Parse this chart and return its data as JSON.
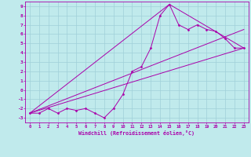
{
  "title": "",
  "xlabel": "Windchill (Refroidissement éolien,°C)",
  "background_color": "#c0eaec",
  "grid_color": "#a0d0d8",
  "line_color": "#aa00aa",
  "xlim": [
    -0.5,
    23.5
  ],
  "ylim": [
    -3.5,
    9.5
  ],
  "xticks": [
    0,
    1,
    2,
    3,
    4,
    5,
    6,
    7,
    8,
    9,
    10,
    11,
    12,
    13,
    14,
    15,
    16,
    17,
    18,
    19,
    20,
    21,
    22,
    23
  ],
  "yticks": [
    -3,
    -2,
    -1,
    0,
    1,
    2,
    3,
    4,
    5,
    6,
    7,
    8,
    9
  ],
  "main_x": [
    0,
    1,
    2,
    3,
    4,
    5,
    6,
    7,
    8,
    9,
    10,
    11,
    12,
    13,
    14,
    15,
    16,
    17,
    18,
    19,
    20,
    21,
    22,
    23
  ],
  "main_y": [
    -2.5,
    -2.5,
    -2.0,
    -2.5,
    -2.0,
    -2.2,
    -2.0,
    -2.5,
    -3.0,
    -2.0,
    -0.5,
    2.0,
    2.5,
    4.5,
    8.0,
    9.2,
    7.0,
    6.5,
    7.0,
    6.5,
    6.3,
    5.5,
    4.5,
    4.5
  ],
  "line2_x": [
    0,
    23
  ],
  "line2_y": [
    -2.5,
    4.5
  ],
  "line3_x": [
    0,
    15,
    23
  ],
  "line3_y": [
    -2.5,
    9.2,
    4.5
  ],
  "line4_x": [
    0,
    23
  ],
  "line4_y": [
    -2.5,
    6.5
  ]
}
